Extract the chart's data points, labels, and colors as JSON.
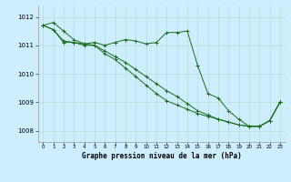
{
  "title": "Graphe pression niveau de la mer (hPa)",
  "background_color": "#cceeff",
  "grid_color": "#b8ddd0",
  "line_color": "#1a6b1a",
  "marker_color": "#1a6b1a",
  "xlim": [
    -0.5,
    23.5
  ],
  "ylim": [
    1007.6,
    1012.4
  ],
  "yticks": [
    1008,
    1009,
    1010,
    1011,
    1012
  ],
  "xticks": [
    0,
    1,
    2,
    3,
    4,
    5,
    6,
    7,
    8,
    9,
    10,
    11,
    12,
    13,
    14,
    15,
    16,
    17,
    18,
    19,
    20,
    21,
    22,
    23
  ],
  "series": [
    {
      "x": [
        0,
        1,
        2,
        3,
        4,
        5,
        6,
        7,
        8,
        9,
        10,
        11,
        12,
        13,
        14,
        15,
        16,
        17,
        18,
        19,
        20,
        21,
        22,
        23
      ],
      "y": [
        1011.7,
        1011.8,
        1011.5,
        1011.2,
        1011.05,
        1011.1,
        1011.0,
        1011.1,
        1011.2,
        1011.15,
        1011.05,
        1011.1,
        1011.45,
        1011.45,
        1011.5,
        1010.3,
        1009.3,
        1009.15,
        1008.7,
        1008.4,
        1008.15,
        1008.15,
        1008.35,
        1009.0
      ]
    },
    {
      "x": [
        0,
        1,
        2,
        3,
        4,
        5,
        6,
        7,
        8,
        9,
        10,
        11,
        12,
        13,
        14,
        15,
        16,
        17,
        18,
        19,
        20,
        21,
        22,
        23
      ],
      "y": [
        1011.7,
        1011.55,
        1011.1,
        1011.1,
        1011.0,
        1011.0,
        1010.7,
        1010.5,
        1010.2,
        1009.9,
        1009.6,
        1009.3,
        1009.05,
        1008.9,
        1008.75,
        1008.6,
        1008.5,
        1008.4,
        1008.3,
        1008.2,
        1008.15,
        1008.15,
        1008.35,
        1009.0
      ]
    },
    {
      "x": [
        0,
        1,
        2,
        3,
        4,
        5,
        6,
        7,
        8,
        9,
        10,
        11,
        12,
        13,
        14,
        15,
        16,
        17,
        18,
        19,
        20,
        21,
        22,
        23
      ],
      "y": [
        1011.7,
        1011.55,
        1011.15,
        1011.1,
        1011.05,
        1011.0,
        1010.8,
        1010.6,
        1010.4,
        1010.15,
        1009.9,
        1009.65,
        1009.4,
        1009.2,
        1008.95,
        1008.7,
        1008.55,
        1008.4,
        1008.3,
        1008.2,
        1008.15,
        1008.15,
        1008.35,
        1009.0
      ]
    }
  ]
}
